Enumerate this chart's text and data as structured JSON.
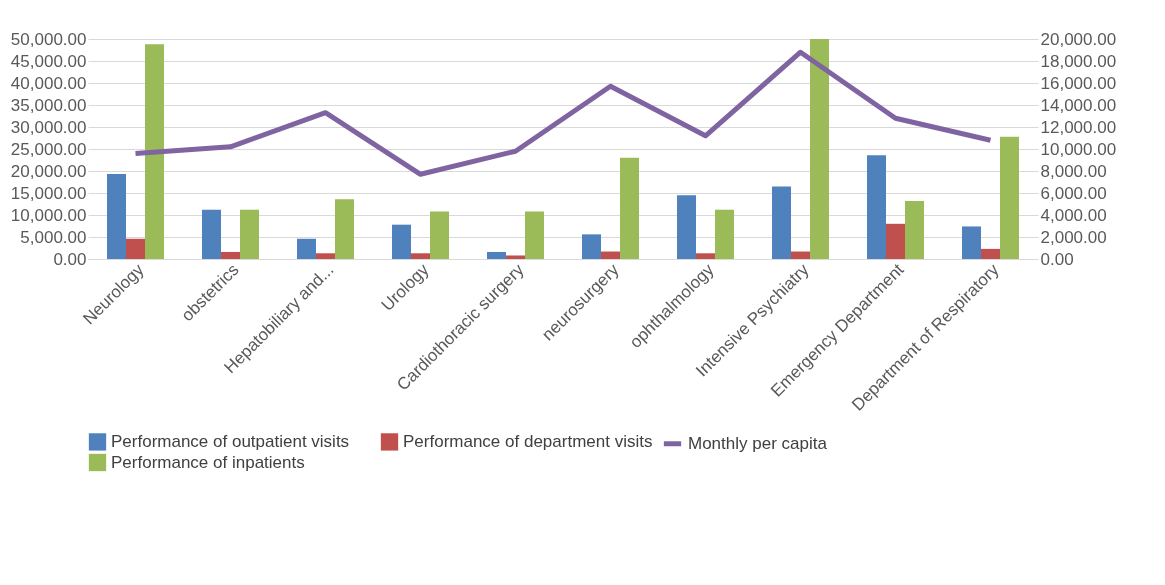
{
  "chart_data": {
    "type": "bar",
    "categories": [
      "Neurology",
      "obstetrics",
      "Hepatobiliary and...",
      "Urology",
      "Cardiothoracic surgery",
      "neurosurgery",
      "ophthalmology",
      "Intensive Psychiatry",
      "Emergency Department",
      "Department of Respiratory"
    ],
    "series": [
      {
        "name": "Performance of outpatient visits",
        "color": "#4f81bd",
        "values": [
          19300,
          11200,
          4600,
          7800,
          1600,
          5600,
          14500,
          16500,
          23600,
          7400
        ]
      },
      {
        "name": "Performance of department visits",
        "color": "#c0504d",
        "values": [
          4600,
          1600,
          1300,
          1300,
          800,
          1700,
          1300,
          1700,
          8000,
          2300
        ]
      },
      {
        "name": "Performance of inpatients",
        "color": "#9bbb59",
        "values": [
          48800,
          11200,
          13600,
          10800,
          10800,
          23000,
          11200,
          50000,
          13200,
          27800
        ]
      },
      {
        "name": "Monthly per capita",
        "color": "#8064a2",
        "type": "line",
        "axis": "y2",
        "values": [
          9600,
          10200,
          13300,
          7700,
          9800,
          15700,
          11200,
          18800,
          12800,
          10800
        ]
      }
    ],
    "ylim": [
      0,
      50000
    ],
    "yticks": [
      {
        "value": 0,
        "label": "0.00"
      },
      {
        "value": 5000,
        "label": "5,000.00"
      },
      {
        "value": 10000,
        "label": "10,000.00"
      },
      {
        "value": 15000,
        "label": "15,000.00"
      },
      {
        "value": 20000,
        "label": "20,000.00"
      },
      {
        "value": 25000,
        "label": "25,000.00"
      },
      {
        "value": 30000,
        "label": "30,000.00"
      },
      {
        "value": 35000,
        "label": "35,000.00"
      },
      {
        "value": 40000,
        "label": "40,000.00"
      },
      {
        "value": 45000,
        "label": "45,000.00"
      },
      {
        "value": 50000,
        "label": "50,000.00"
      }
    ],
    "y2lim": [
      0,
      20000
    ],
    "y2ticks": [
      {
        "value": 0,
        "label": "0.00"
      },
      {
        "value": 2000,
        "label": "2,000.00"
      },
      {
        "value": 4000,
        "label": "4,000.00"
      },
      {
        "value": 6000,
        "label": "6,000.00"
      },
      {
        "value": 8000,
        "label": "8,000.00"
      },
      {
        "value": 10000,
        "label": "10,000.00"
      },
      {
        "value": 12000,
        "label": "12,000.00"
      },
      {
        "value": 14000,
        "label": "14,000.00"
      },
      {
        "value": 16000,
        "label": "16,000.00"
      },
      {
        "value": 18000,
        "label": "18,000.00"
      },
      {
        "value": 20000,
        "label": "20,000.00"
      }
    ],
    "grid": "y",
    "legend": "bottom"
  }
}
